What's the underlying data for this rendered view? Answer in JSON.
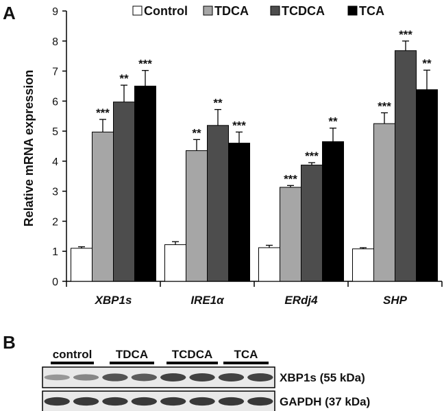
{
  "panel_a_label": "A",
  "panel_b_label": "B",
  "chart_data": {
    "type": "bar",
    "categories": [
      "XBP1s",
      "IRE1α",
      "ERdj4",
      "SHP"
    ],
    "series": [
      {
        "name": "Control",
        "color": "#ffffff",
        "values": [
          1.1,
          1.22,
          1.12,
          1.08
        ],
        "errors": [
          0.05,
          0.1,
          0.08,
          0.04
        ],
        "sig": [
          "",
          "",
          "",
          ""
        ]
      },
      {
        "name": "TDCA",
        "color": "#a6a6a6",
        "values": [
          4.97,
          4.35,
          3.13,
          5.25
        ],
        "errors": [
          0.42,
          0.37,
          0.06,
          0.36
        ],
        "sig": [
          "***",
          "**",
          "***",
          "***"
        ]
      },
      {
        "name": "TCDCA",
        "color": "#4d4d4d",
        "values": [
          5.97,
          5.19,
          3.87,
          7.68
        ],
        "errors": [
          0.56,
          0.53,
          0.08,
          0.32
        ],
        "sig": [
          "**",
          "**",
          "***",
          "***"
        ]
      },
      {
        "name": "TCA",
        "color": "#000000",
        "values": [
          6.5,
          4.6,
          4.65,
          6.38
        ],
        "errors": [
          0.52,
          0.37,
          0.45,
          0.65
        ],
        "sig": [
          "***",
          "***",
          "**",
          "**"
        ]
      }
    ],
    "ylabel": "Relative mRNA expression",
    "ylim": [
      0,
      9
    ],
    "yticks": [
      0,
      1,
      2,
      3,
      4,
      5,
      6,
      7,
      8,
      9
    ],
    "legend_position": "top-right"
  },
  "blot": {
    "groups": [
      "control",
      "TDCA",
      "TCDCA",
      "TCA"
    ],
    "rows": [
      {
        "label": "XBP1s (55 kDa)",
        "intensities": [
          0.35,
          0.45,
          0.75,
          0.7,
          0.85,
          0.85,
          0.85,
          0.85
        ]
      },
      {
        "label": "GAPDH (37 kDa)",
        "intensities": [
          0.9,
          0.9,
          0.9,
          0.9,
          0.9,
          0.9,
          0.9,
          0.9
        ]
      }
    ]
  }
}
